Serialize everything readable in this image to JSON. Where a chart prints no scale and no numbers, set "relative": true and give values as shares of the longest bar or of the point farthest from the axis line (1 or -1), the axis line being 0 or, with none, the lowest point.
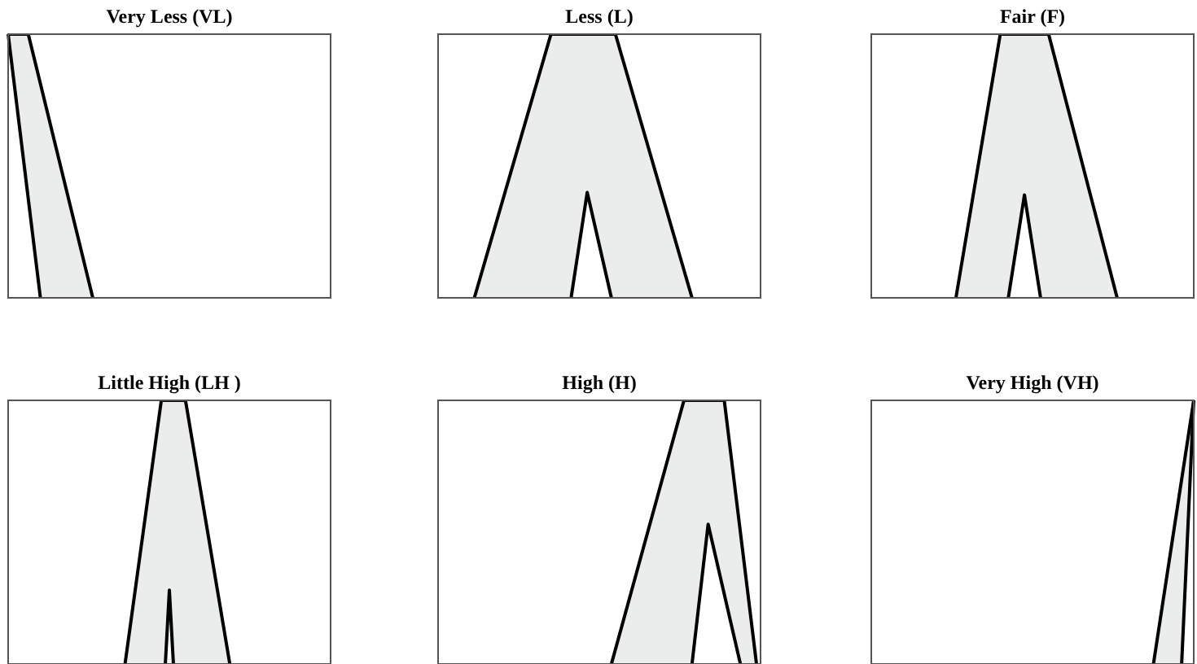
{
  "chart_data": [
    {
      "type": "area",
      "title": "Very Less (VL)",
      "relative": true,
      "legend": false,
      "categories": [
        null,
        null,
        null,
        null,
        null,
        null,
        null,
        null,
        null,
        null,
        null,
        null,
        null,
        null,
        null,
        null,
        null,
        null,
        null,
        null,
        null,
        null,
        null,
        null,
        null,
        null,
        null,
        null,
        null,
        null,
        null,
        null,
        null,
        null,
        null,
        null,
        null,
        null,
        null,
        null,
        null,
        null,
        null,
        null,
        null,
        null,
        null,
        null,
        null,
        null,
        null,
        null,
        null,
        null,
        null,
        null,
        null,
        null,
        null,
        null,
        null,
        null,
        null,
        null,
        null,
        null,
        null,
        null,
        null,
        null,
        null,
        null,
        null,
        null,
        null,
        null,
        null,
        null,
        null,
        null,
        null
      ],
      "series": [
        {
          "color": "#ebeded",
          "values": [
            1,
            null,
            null,
            null,
            null,
            1,
            null,
            null,
            null,
            null,
            null,
            null,
            null,
            null,
            null,
            null,
            null,
            null,
            null,
            null,
            null,
            0,
            null,
            null,
            null,
            null,
            null,
            null,
            null,
            null,
            null,
            null,
            null,
            null,
            null,
            null,
            null,
            null,
            null,
            null,
            null,
            null,
            null,
            null,
            null,
            null,
            null,
            null,
            null,
            null,
            null,
            null,
            null,
            null,
            null,
            null,
            null,
            null,
            null,
            null,
            null,
            null,
            null,
            null,
            null,
            null,
            null,
            null,
            null,
            null,
            null,
            null,
            null,
            null,
            null,
            null,
            null,
            null,
            null,
            null,
            null
          ]
        },
        {
          "color": "#ffffff",
          "values": [
            1,
            null,
            null,
            null,
            null,
            null,
            null,
            null,
            0,
            null,
            null,
            null,
            null,
            null,
            null,
            null,
            null,
            null,
            null,
            null,
            null,
            null,
            null,
            null,
            null,
            null,
            null,
            null,
            null,
            null,
            null,
            null,
            null,
            null,
            null,
            null,
            null,
            null,
            null,
            null,
            null,
            null,
            null,
            null,
            null,
            null,
            null,
            null,
            null,
            null,
            null,
            null,
            null,
            null,
            null,
            null,
            null,
            null,
            null,
            null,
            null,
            null,
            null,
            null,
            null,
            null,
            null,
            null,
            null,
            null,
            null,
            null,
            null,
            null,
            null,
            null,
            null,
            null,
            null,
            null,
            null
          ]
        }
      ]
    },
    {
      "type": "area",
      "title": "Less (L)",
      "relative": true,
      "legend": false,
      "categories": [
        null,
        null,
        null,
        null,
        null,
        null,
        null,
        null,
        null,
        null,
        null,
        null,
        null,
        null,
        null,
        null,
        null,
        null,
        null,
        null,
        null,
        null,
        null,
        null,
        null,
        null,
        null,
        null,
        null,
        null,
        null,
        null,
        null,
        null,
        null,
        null,
        null,
        null,
        null,
        null,
        null,
        null,
        null,
        null,
        null,
        null,
        null,
        null,
        null,
        null,
        null,
        null,
        null,
        null,
        null,
        null,
        null,
        null,
        null,
        null,
        null,
        null,
        null,
        null,
        null,
        null,
        null,
        null,
        null,
        null,
        null,
        null,
        null,
        null,
        null,
        null,
        null,
        null,
        null,
        null,
        null
      ],
      "series": [
        {
          "color": "#ebeded",
          "values": [
            null,
            null,
            null,
            null,
            null,
            null,
            null,
            null,
            null,
            0,
            null,
            null,
            null,
            null,
            null,
            null,
            null,
            null,
            null,
            null,
            null,
            null,
            null,
            null,
            null,
            null,
            null,
            null,
            1,
            null,
            null,
            null,
            null,
            null,
            null,
            null,
            null,
            null,
            null,
            null,
            null,
            null,
            null,
            null,
            1,
            null,
            null,
            null,
            null,
            null,
            null,
            null,
            null,
            null,
            null,
            null,
            null,
            null,
            null,
            null,
            null,
            null,
            null,
            0,
            null,
            null,
            null,
            null,
            null,
            null,
            null,
            null,
            null,
            null,
            null,
            null,
            null,
            null,
            null,
            null,
            null
          ]
        },
        {
          "color": "#ffffff",
          "values": [
            null,
            null,
            null,
            null,
            null,
            null,
            null,
            null,
            null,
            null,
            null,
            null,
            null,
            null,
            null,
            null,
            null,
            null,
            null,
            null,
            null,
            null,
            null,
            null,
            null,
            null,
            null,
            null,
            null,
            null,
            null,
            null,
            null,
            0,
            null,
            null,
            null,
            0.4,
            null,
            null,
            null,
            null,
            null,
            0,
            null,
            null,
            null,
            null,
            null,
            null,
            null,
            null,
            null,
            null,
            null,
            null,
            null,
            null,
            null,
            null,
            null,
            null,
            null,
            null,
            null,
            null,
            null,
            null,
            null,
            null,
            null,
            null,
            null,
            null,
            null,
            null,
            null,
            null,
            null,
            null,
            null
          ]
        }
      ]
    },
    {
      "type": "area",
      "title": "Fair (F)",
      "relative": true,
      "legend": false,
      "categories": [
        null,
        null,
        null,
        null,
        null,
        null,
        null,
        null,
        null,
        null,
        null,
        null,
        null,
        null,
        null,
        null,
        null,
        null,
        null,
        null,
        null,
        null,
        null,
        null,
        null,
        null,
        null,
        null,
        null,
        null,
        null,
        null,
        null,
        null,
        null,
        null,
        null,
        null,
        null,
        null,
        null,
        null,
        null,
        null,
        null,
        null,
        null,
        null,
        null,
        null,
        null,
        null,
        null,
        null,
        null,
        null,
        null,
        null,
        null,
        null,
        null,
        null,
        null,
        null,
        null,
        null,
        null,
        null,
        null,
        null,
        null,
        null,
        null,
        null,
        null,
        null,
        null,
        null,
        null,
        null,
        null
      ],
      "series": [
        {
          "color": "#ebeded",
          "values": [
            null,
            null,
            null,
            null,
            null,
            null,
            null,
            null,
            null,
            null,
            null,
            null,
            null,
            null,
            null,
            null,
            null,
            null,
            null,
            null,
            null,
            0,
            null,
            null,
            null,
            null,
            null,
            null,
            null,
            null,
            null,
            null,
            1,
            null,
            null,
            null,
            null,
            null,
            null,
            null,
            null,
            null,
            null,
            null,
            1,
            null,
            null,
            null,
            null,
            null,
            null,
            null,
            null,
            null,
            null,
            null,
            null,
            null,
            null,
            null,
            null,
            0,
            null,
            null,
            null,
            null,
            null,
            null,
            null,
            null,
            null,
            null,
            null,
            null,
            null,
            null,
            null,
            null,
            null,
            null,
            null
          ]
        },
        {
          "color": "#ffffff",
          "values": [
            null,
            null,
            null,
            null,
            null,
            null,
            null,
            null,
            null,
            null,
            null,
            null,
            null,
            null,
            null,
            null,
            null,
            null,
            null,
            null,
            null,
            null,
            null,
            null,
            null,
            null,
            null,
            null,
            null,
            null,
            null,
            null,
            null,
            null,
            0,
            null,
            null,
            null,
            0.39,
            null,
            null,
            null,
            0,
            null,
            null,
            null,
            null,
            null,
            null,
            null,
            null,
            null,
            null,
            null,
            null,
            null,
            null,
            null,
            null,
            null,
            null,
            null,
            null,
            null,
            null,
            null,
            null,
            null,
            null,
            null,
            null,
            null,
            null,
            null,
            null,
            null,
            null,
            null,
            null,
            null,
            null
          ]
        }
      ]
    },
    {
      "type": "area",
      "title": "Little High (LH )",
      "relative": true,
      "legend": false,
      "categories": [
        null,
        null,
        null,
        null,
        null,
        null,
        null,
        null,
        null,
        null,
        null,
        null,
        null,
        null,
        null,
        null,
        null,
        null,
        null,
        null,
        null,
        null,
        null,
        null,
        null,
        null,
        null,
        null,
        null,
        null,
        null,
        null,
        null,
        null,
        null,
        null,
        null,
        null,
        null,
        null,
        null,
        null,
        null,
        null,
        null,
        null,
        null,
        null,
        null,
        null,
        null,
        null,
        null,
        null,
        null,
        null,
        null,
        null,
        null,
        null,
        null,
        null,
        null,
        null,
        null,
        null,
        null,
        null,
        null,
        null,
        null,
        null,
        null,
        null,
        null,
        null,
        null,
        null,
        null,
        null,
        null
      ],
      "series": [
        {
          "color": "#ebeded",
          "values": [
            null,
            null,
            null,
            null,
            null,
            null,
            null,
            null,
            null,
            null,
            null,
            null,
            null,
            null,
            null,
            null,
            null,
            null,
            null,
            null,
            null,
            null,
            null,
            null,
            null,
            null,
            null,
            null,
            null,
            0,
            null,
            null,
            null,
            null,
            null,
            null,
            null,
            null,
            1,
            null,
            null,
            null,
            null,
            null,
            1,
            null,
            null,
            null,
            null,
            null,
            null,
            null,
            null,
            null,
            null,
            0,
            null,
            null,
            null,
            null,
            null,
            null,
            null,
            null,
            null,
            null,
            null,
            null,
            null,
            null,
            null,
            null,
            null,
            null,
            null,
            null,
            null,
            null,
            null,
            null,
            null
          ]
        },
        {
          "color": "#ffffff",
          "values": [
            null,
            null,
            null,
            null,
            null,
            null,
            null,
            null,
            null,
            null,
            null,
            null,
            null,
            null,
            null,
            null,
            null,
            null,
            null,
            null,
            null,
            null,
            null,
            null,
            null,
            null,
            null,
            null,
            null,
            null,
            null,
            null,
            null,
            null,
            null,
            null,
            null,
            null,
            null,
            0,
            0.28,
            0,
            null,
            null,
            null,
            null,
            null,
            null,
            null,
            null,
            null,
            null,
            null,
            null,
            null,
            null,
            null,
            null,
            null,
            null,
            null,
            null,
            null,
            null,
            null,
            null,
            null,
            null,
            null,
            null,
            null,
            null,
            null,
            null,
            null,
            null,
            null,
            null,
            null,
            null,
            null
          ]
        }
      ]
    },
    {
      "type": "area",
      "title": "High (H)",
      "relative": true,
      "legend": false,
      "categories": [
        null,
        null,
        null,
        null,
        null,
        null,
        null,
        null,
        null,
        null,
        null,
        null,
        null,
        null,
        null,
        null,
        null,
        null,
        null,
        null,
        null,
        null,
        null,
        null,
        null,
        null,
        null,
        null,
        null,
        null,
        null,
        null,
        null,
        null,
        null,
        null,
        null,
        null,
        null,
        null,
        null,
        null,
        null,
        null,
        null,
        null,
        null,
        null,
        null,
        null,
        null,
        null,
        null,
        null,
        null,
        null,
        null,
        null,
        null,
        null,
        null,
        null,
        null,
        null,
        null,
        null,
        null,
        null,
        null,
        null,
        null,
        null,
        null,
        null,
        null,
        null,
        null,
        null,
        null,
        null,
        null
      ],
      "series": [
        {
          "color": "#ebeded",
          "values": [
            null,
            null,
            null,
            null,
            null,
            null,
            null,
            null,
            null,
            null,
            null,
            null,
            null,
            null,
            null,
            null,
            null,
            null,
            null,
            null,
            null,
            null,
            null,
            null,
            null,
            null,
            null,
            null,
            null,
            null,
            null,
            null,
            null,
            null,
            null,
            null,
            null,
            null,
            null,
            null,
            null,
            null,
            null,
            0,
            null,
            null,
            null,
            null,
            null,
            null,
            null,
            null,
            null,
            null,
            null,
            null,
            null,
            null,
            null,
            null,
            null,
            1,
            null,
            null,
            null,
            null,
            null,
            null,
            null,
            null,
            null,
            1,
            null,
            null,
            null,
            null,
            null,
            null,
            null,
            0,
            null
          ]
        },
        {
          "color": "#ffffff",
          "values": [
            null,
            null,
            null,
            null,
            null,
            null,
            null,
            null,
            null,
            null,
            null,
            null,
            null,
            null,
            null,
            null,
            null,
            null,
            null,
            null,
            null,
            null,
            null,
            null,
            null,
            null,
            null,
            null,
            null,
            null,
            null,
            null,
            null,
            null,
            null,
            null,
            null,
            null,
            null,
            null,
            null,
            null,
            null,
            null,
            null,
            null,
            null,
            null,
            null,
            null,
            null,
            null,
            null,
            null,
            null,
            null,
            null,
            null,
            null,
            null,
            null,
            null,
            null,
            0,
            null,
            null,
            null,
            0.53,
            null,
            null,
            null,
            null,
            null,
            null,
            null,
            0,
            null,
            null,
            null,
            null,
            null
          ]
        }
      ]
    },
    {
      "type": "area",
      "title": "Very High (VH)",
      "relative": true,
      "legend": false,
      "categories": [
        null,
        null,
        null,
        null,
        null,
        null,
        null,
        null,
        null,
        null,
        null,
        null,
        null,
        null,
        null,
        null,
        null,
        null,
        null,
        null,
        null,
        null,
        null,
        null,
        null,
        null,
        null,
        null,
        null,
        null,
        null,
        null,
        null,
        null,
        null,
        null,
        null,
        null,
        null,
        null,
        null,
        null,
        null,
        null,
        null,
        null,
        null,
        null,
        null,
        null,
        null,
        null,
        null,
        null,
        null,
        null,
        null,
        null,
        null,
        null,
        null,
        null,
        null,
        null,
        null,
        null,
        null,
        null,
        null,
        null,
        null,
        null,
        null,
        null,
        null,
        null,
        null,
        null,
        null,
        null,
        null
      ],
      "series": [
        {
          "color": "#ebeded",
          "values": [
            null,
            null,
            null,
            null,
            null,
            null,
            null,
            null,
            null,
            null,
            null,
            null,
            null,
            null,
            null,
            null,
            null,
            null,
            null,
            null,
            null,
            null,
            null,
            null,
            null,
            null,
            null,
            null,
            null,
            null,
            null,
            null,
            null,
            null,
            null,
            null,
            null,
            null,
            null,
            null,
            null,
            null,
            null,
            null,
            null,
            null,
            null,
            null,
            null,
            null,
            null,
            null,
            null,
            null,
            null,
            null,
            null,
            null,
            null,
            null,
            null,
            null,
            null,
            null,
            null,
            null,
            null,
            null,
            null,
            null,
            0,
            null,
            null,
            null,
            null,
            null,
            null,
            null,
            null,
            null,
            1
          ]
        },
        {
          "color": "#ffffff",
          "values": [
            null,
            null,
            null,
            null,
            null,
            null,
            null,
            null,
            null,
            null,
            null,
            null,
            null,
            null,
            null,
            null,
            null,
            null,
            null,
            null,
            null,
            null,
            null,
            null,
            null,
            null,
            null,
            null,
            null,
            null,
            null,
            null,
            null,
            null,
            null,
            null,
            null,
            null,
            null,
            null,
            null,
            null,
            null,
            null,
            null,
            null,
            null,
            null,
            null,
            null,
            null,
            null,
            null,
            null,
            null,
            null,
            null,
            null,
            null,
            null,
            null,
            null,
            null,
            null,
            null,
            null,
            null,
            null,
            null,
            null,
            null,
            null,
            null,
            null,
            null,
            null,
            null,
            0,
            null,
            null,
            1
          ]
        }
      ]
    }
  ]
}
